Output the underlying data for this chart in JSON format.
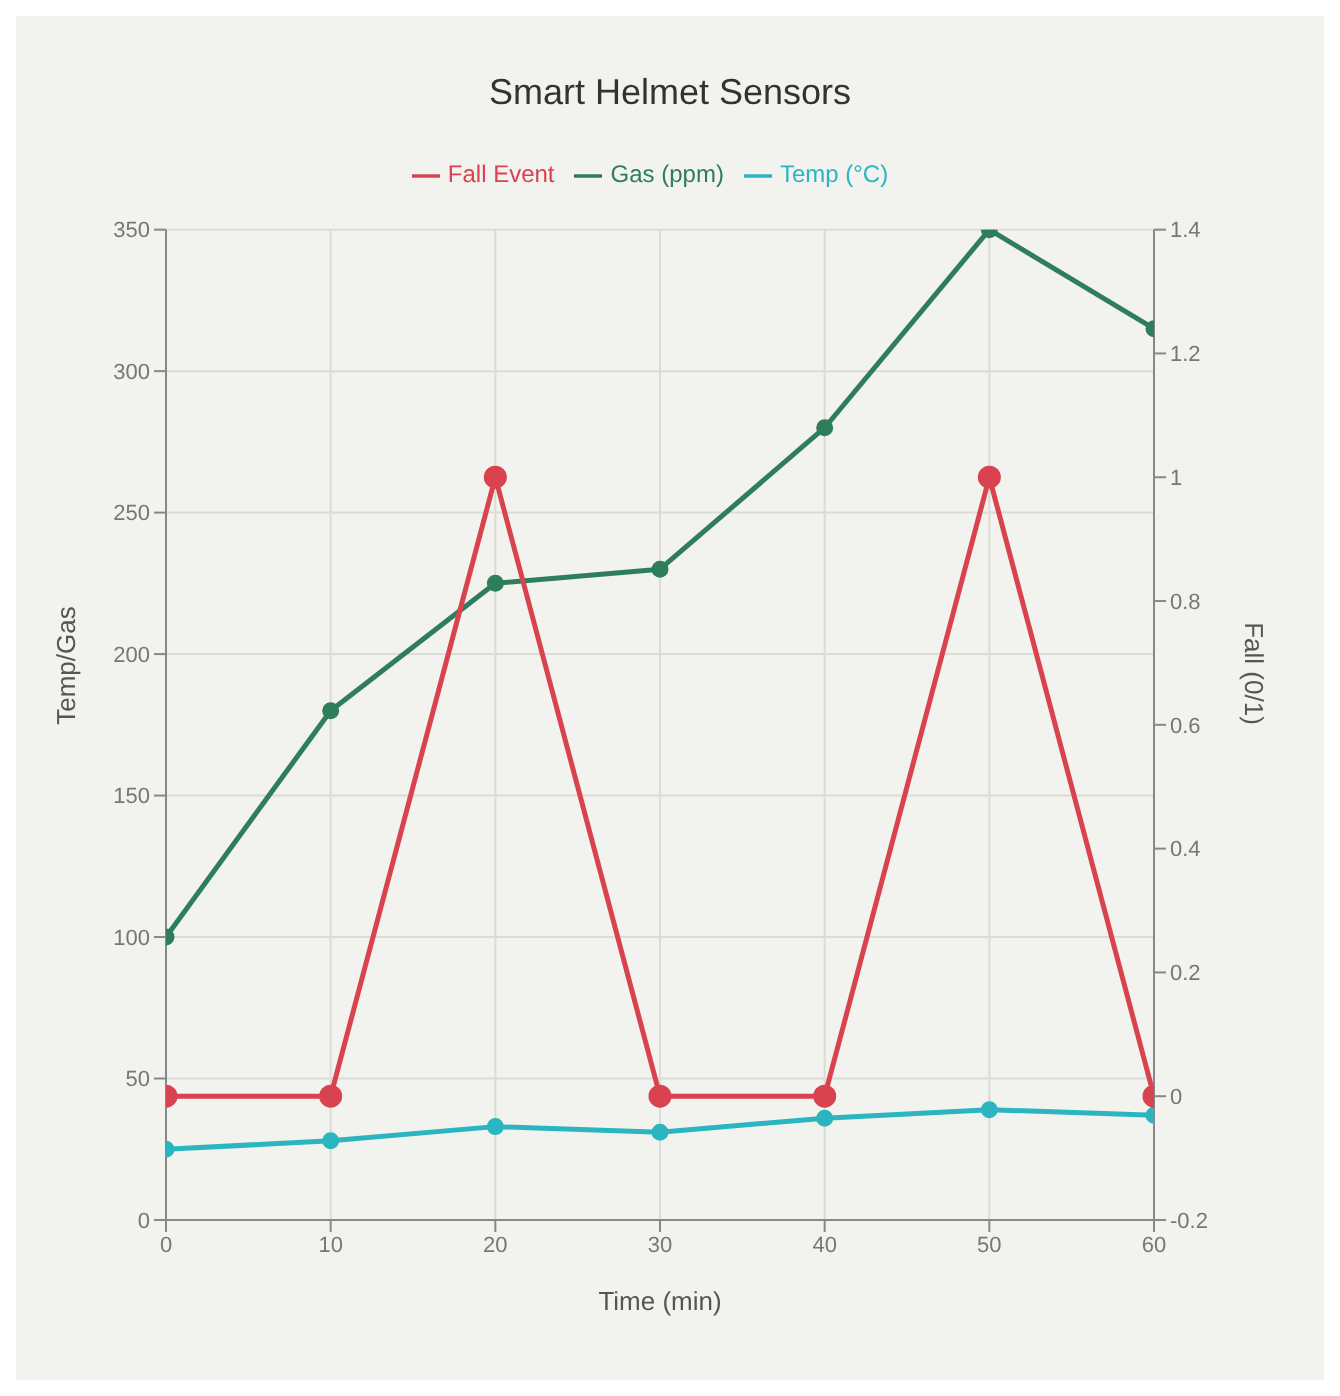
{
  "chart_data": {
    "type": "line",
    "title": "Smart Helmet Sensors",
    "xlabel": "Time (min)",
    "ylabel": "Temp/Gas",
    "y2label": "Fall (0/1)",
    "x": [
      0,
      10,
      20,
      30,
      40,
      50,
      60
    ],
    "series": [
      {
        "name": "Temp (°C)",
        "color": "#2bb5c0",
        "values": [
          25,
          28,
          33,
          31,
          36,
          39,
          37
        ]
      },
      {
        "name": "Gas (ppm)",
        "color": "#2e7d5b",
        "values": [
          100,
          180,
          225,
          230,
          280,
          350,
          315
        ]
      },
      {
        "name": "Fall Event",
        "color": "#d9434f",
        "values": [
          0,
          0,
          1,
          0,
          0,
          1,
          0
        ],
        "axis": "y2"
      }
    ],
    "xlim": [
      0,
      60
    ],
    "xticks": [
      0,
      10,
      20,
      30,
      40,
      50,
      60
    ],
    "ylim": [
      0,
      350
    ],
    "yticks": [
      0,
      50,
      100,
      150,
      200,
      250,
      300,
      350
    ],
    "y2lim": [
      -0.2,
      1.4
    ],
    "y2ticks": [
      -0.2,
      0,
      0.2,
      0.4,
      0.6,
      0.8,
      1,
      1.2,
      1.4
    ],
    "grid": true,
    "legend": "top",
    "marker": "circle",
    "line_style": "solid"
  }
}
